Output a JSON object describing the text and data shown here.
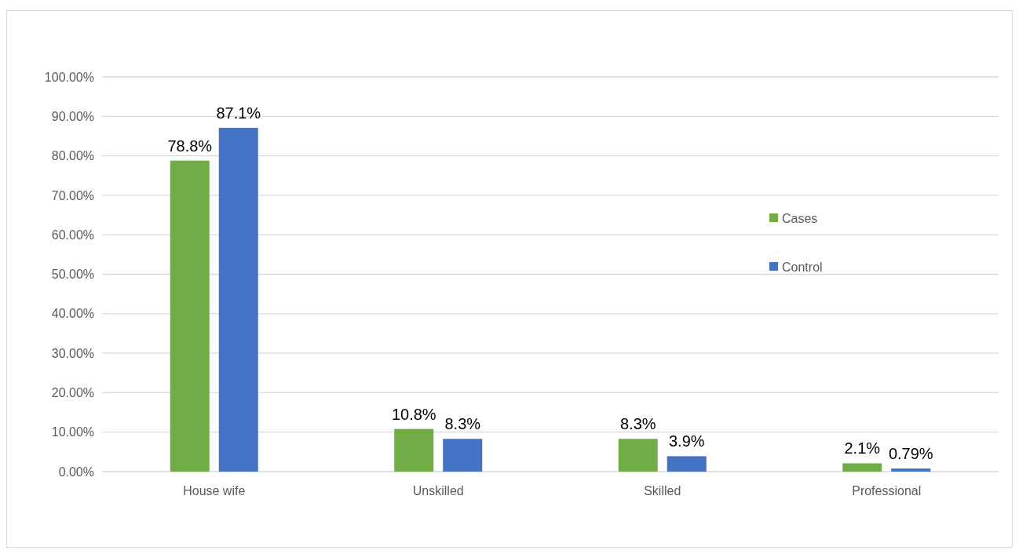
{
  "chart_data": {
    "type": "bar",
    "categories": [
      "House wife",
      "Unskilled",
      "Skilled",
      "Professional"
    ],
    "series": [
      {
        "name": "Cases",
        "color": "#70ad47",
        "values": [
          78.8,
          10.8,
          8.3,
          2.1
        ],
        "value_labels": [
          "78.8%",
          "10.8%",
          "8.3%",
          "2.1%"
        ]
      },
      {
        "name": "Control",
        "color": "#4472c4",
        "values": [
          87.1,
          8.3,
          3.9,
          0.79
        ],
        "value_labels": [
          "87.1%",
          "8.3%",
          "3.9%",
          "0.79%"
        ]
      }
    ],
    "ylim": [
      0,
      100
    ],
    "yticks": [
      {
        "value": 0,
        "label": "0.00%"
      },
      {
        "value": 10,
        "label": "10.00%"
      },
      {
        "value": 20,
        "label": "20.00%"
      },
      {
        "value": 30,
        "label": "30.00%"
      },
      {
        "value": 40,
        "label": "40.00%"
      },
      {
        "value": 50,
        "label": "50.00%"
      },
      {
        "value": 60,
        "label": "60.00%"
      },
      {
        "value": 70,
        "label": "70.00%"
      },
      {
        "value": 80,
        "label": "80.00%"
      },
      {
        "value": 90,
        "label": "90.00%"
      },
      {
        "value": 100,
        "label": "100.00%"
      }
    ],
    "grid": "y",
    "legend": "right"
  }
}
